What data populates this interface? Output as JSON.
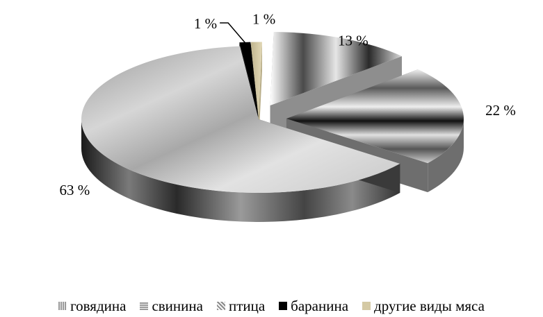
{
  "chart_data": {
    "type": "pie",
    "title": "",
    "categories": [
      "говядина",
      "свинина",
      "птица",
      "баранина",
      "другие виды мяса"
    ],
    "values": [
      13,
      22,
      63,
      1,
      1
    ],
    "data_labels": [
      "13 %",
      "22 %",
      "63 %",
      "1 %",
      "1 %"
    ],
    "legend_position": "bottom",
    "style": "3d-exploded",
    "colors": {
      "говядина": "#b5b5b5",
      "свинина": "#9c9c9c",
      "птица": "#c4c4c4",
      "баранина": "#000000",
      "другие виды мяса": "#d4c9a4"
    }
  }
}
